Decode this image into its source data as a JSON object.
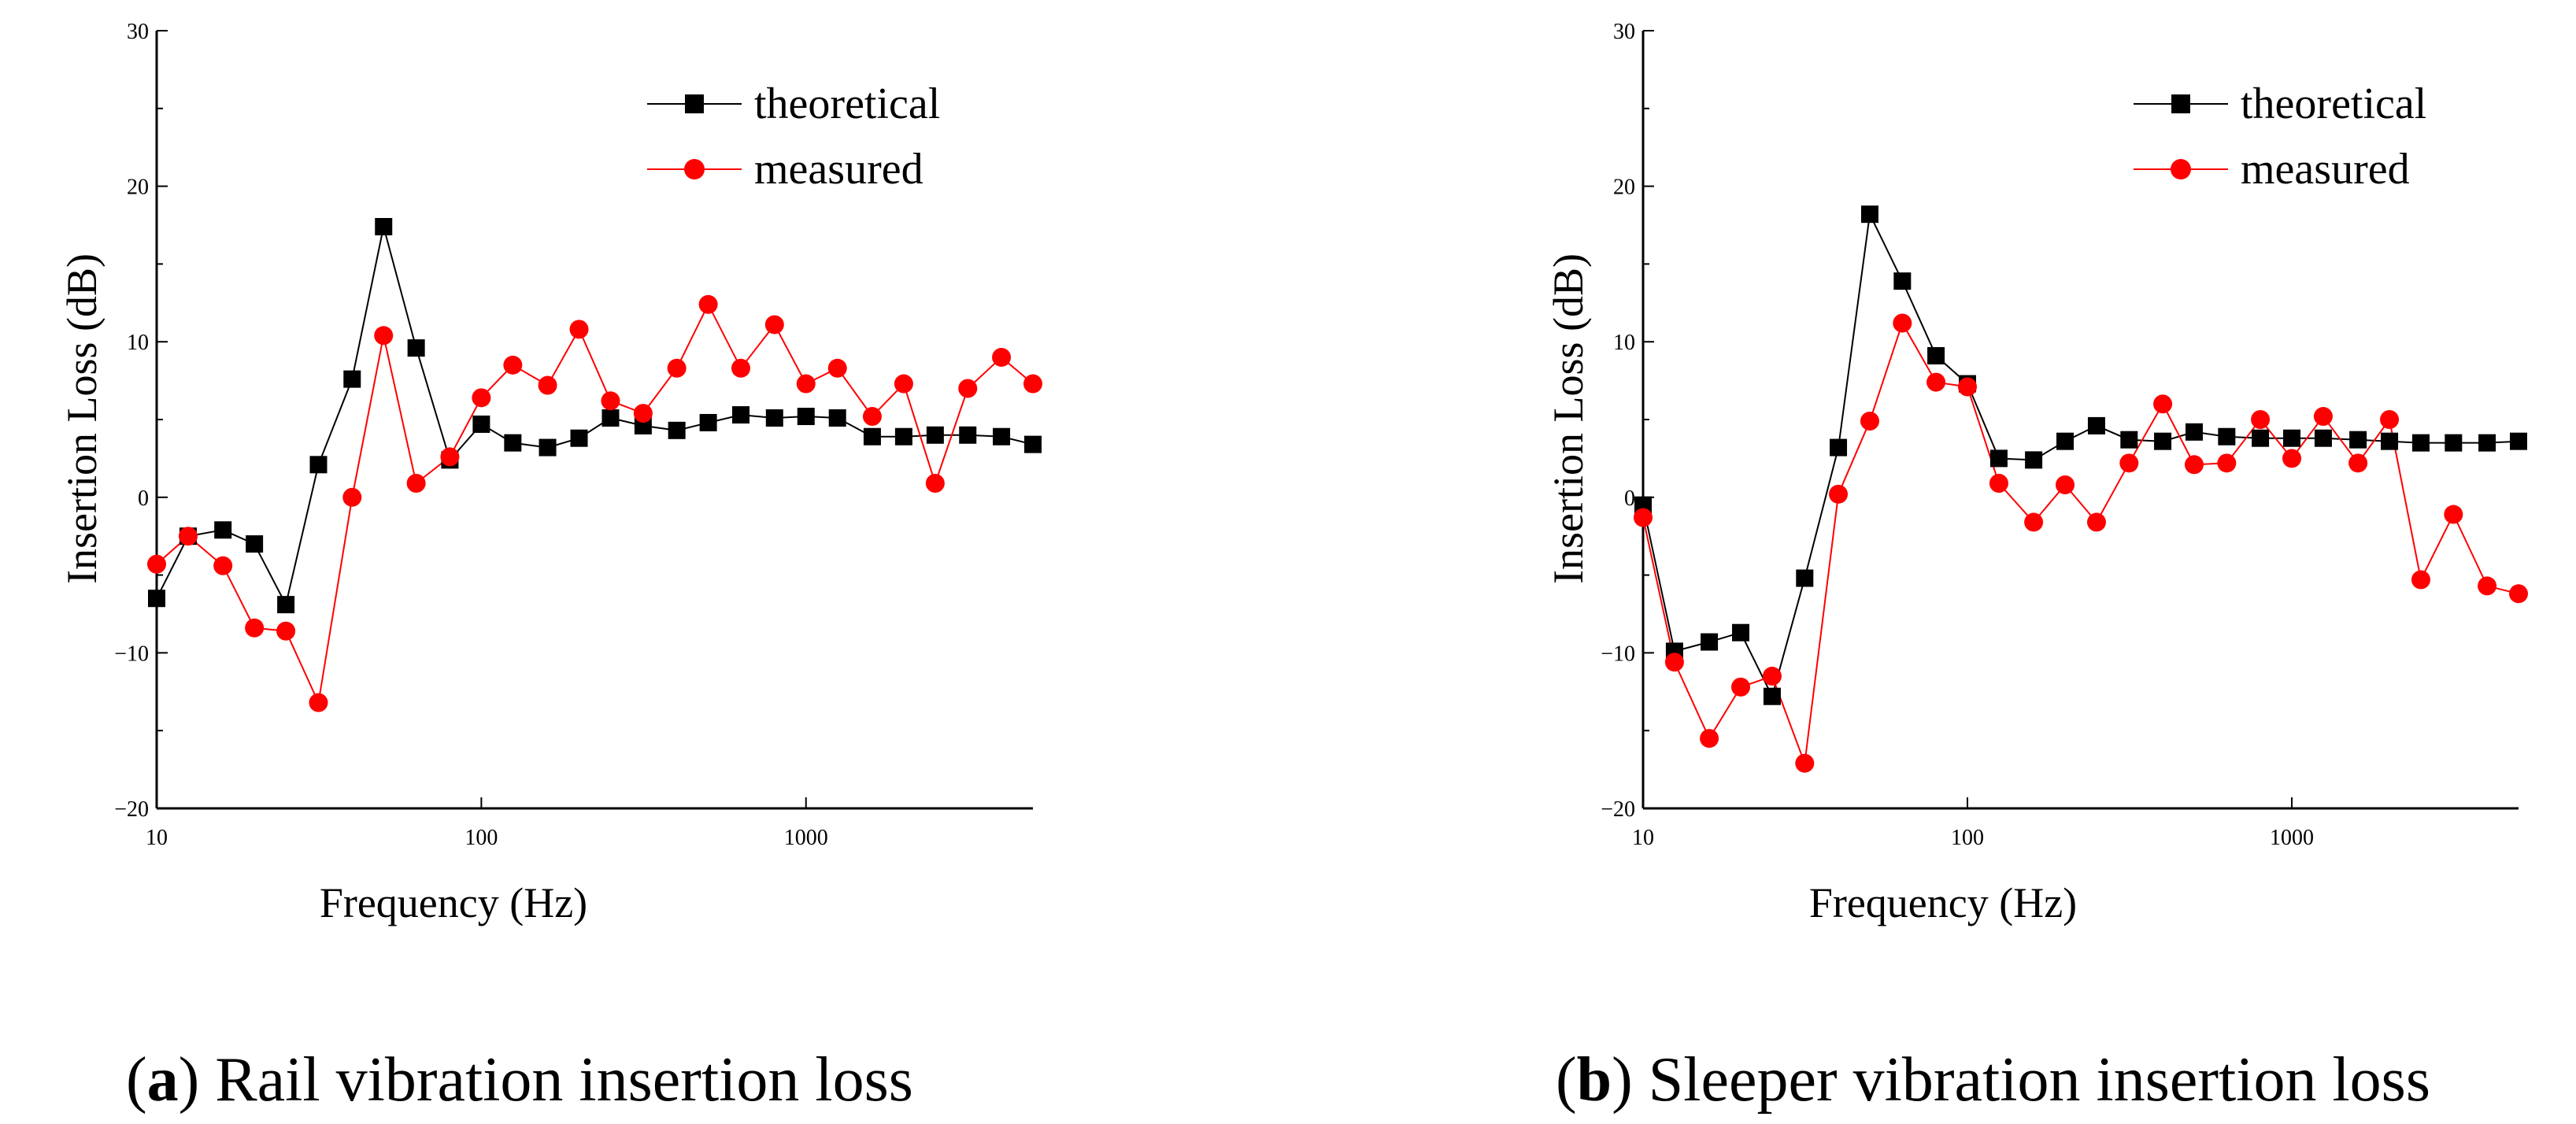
{
  "chart_data": [
    {
      "type": "line",
      "xlabel": "Frequency (Hz)",
      "ylabel": "Insertion Loss (dB)",
      "xscale": "log",
      "xlim": [
        10,
        5000
      ],
      "ylim": [
        -20,
        30
      ],
      "yticks": [
        -20,
        -10,
        0,
        10,
        20,
        30
      ],
      "xticks": [
        10,
        100,
        1000
      ],
      "ytick_labels": [
        "−20",
        "−10",
        "0",
        "10",
        "20",
        "30"
      ],
      "xtick_labels": [
        "10",
        "100",
        "1000"
      ],
      "grid": false,
      "legend_position": "top-right",
      "caption_letter": "a",
      "caption_text": "Rail vibration insertion loss",
      "x": [
        10,
        12.5,
        16,
        20,
        25,
        31.5,
        40,
        50,
        63,
        80,
        100,
        125,
        160,
        200,
        250,
        315,
        400,
        500,
        630,
        800,
        1000,
        1250,
        1600,
        2000,
        2500,
        3150,
        4000,
        5000
      ],
      "series": [
        {
          "name": "theoretical",
          "color": "#000000",
          "marker": "square",
          "values": [
            -6.5,
            -2.5,
            -2.1,
            -3.0,
            -6.9,
            2.1,
            7.6,
            17.4,
            9.6,
            2.4,
            4.7,
            3.5,
            3.2,
            3.8,
            5.1,
            4.6,
            4.3,
            4.8,
            5.3,
            5.1,
            5.2,
            5.1,
            3.9,
            3.9,
            4.0,
            4.0,
            3.9,
            3.4
          ]
        },
        {
          "name": "measured",
          "color": "#ff0000",
          "marker": "circle",
          "values": [
            -4.3,
            -2.5,
            -4.4,
            -8.4,
            -8.6,
            -13.2,
            0.0,
            10.4,
            0.9,
            2.6,
            6.4,
            8.5,
            7.2,
            10.8,
            6.2,
            5.4,
            8.3,
            12.4,
            8.3,
            11.1,
            7.3,
            8.3,
            5.2,
            7.3,
            0.9,
            7.0,
            9.0,
            7.3
          ]
        }
      ]
    },
    {
      "type": "line",
      "xlabel": "Frequency (Hz)",
      "ylabel": "Insertion Loss (dB)",
      "xscale": "log",
      "xlim": [
        10,
        5000
      ],
      "ylim": [
        -20,
        30
      ],
      "yticks": [
        -20,
        -10,
        0,
        10,
        20,
        30
      ],
      "xticks": [
        10,
        100,
        1000
      ],
      "ytick_labels": [
        "−20",
        "−10",
        "0",
        "10",
        "20",
        "30"
      ],
      "xtick_labels": [
        "10",
        "100",
        "1000"
      ],
      "grid": false,
      "legend_position": "top-right",
      "caption_letter": "b",
      "caption_text": "Sleeper vibration insertion loss",
      "x": [
        10,
        12.5,
        16,
        20,
        25,
        31.5,
        40,
        50,
        63,
        80,
        100,
        125,
        160,
        200,
        250,
        315,
        400,
        500,
        630,
        800,
        1000,
        1250,
        1600,
        2000,
        2500,
        3150,
        4000,
        5000
      ],
      "series": [
        {
          "name": "theoretical",
          "color": "#000000",
          "marker": "square",
          "values": [
            -0.5,
            -9.9,
            -9.3,
            -8.7,
            -12.8,
            -5.2,
            3.2,
            18.2,
            13.9,
            9.1,
            7.3,
            2.5,
            2.4,
            3.6,
            4.6,
            3.7,
            3.6,
            4.2,
            3.9,
            3.8,
            3.8,
            3.8,
            3.7,
            3.6,
            3.5,
            3.5,
            3.5,
            3.6
          ]
        },
        {
          "name": "measured",
          "color": "#ff0000",
          "marker": "circle",
          "values": [
            -1.3,
            -10.6,
            -15.5,
            -12.2,
            -11.5,
            -17.1,
            0.2,
            4.9,
            11.2,
            7.4,
            7.1,
            0.9,
            -1.6,
            0.8,
            -1.6,
            2.2,
            6.0,
            2.1,
            2.2,
            5.0,
            2.5,
            5.2,
            2.2,
            5.0,
            -5.3,
            -1.1,
            -5.7,
            -6.2
          ]
        }
      ]
    }
  ]
}
